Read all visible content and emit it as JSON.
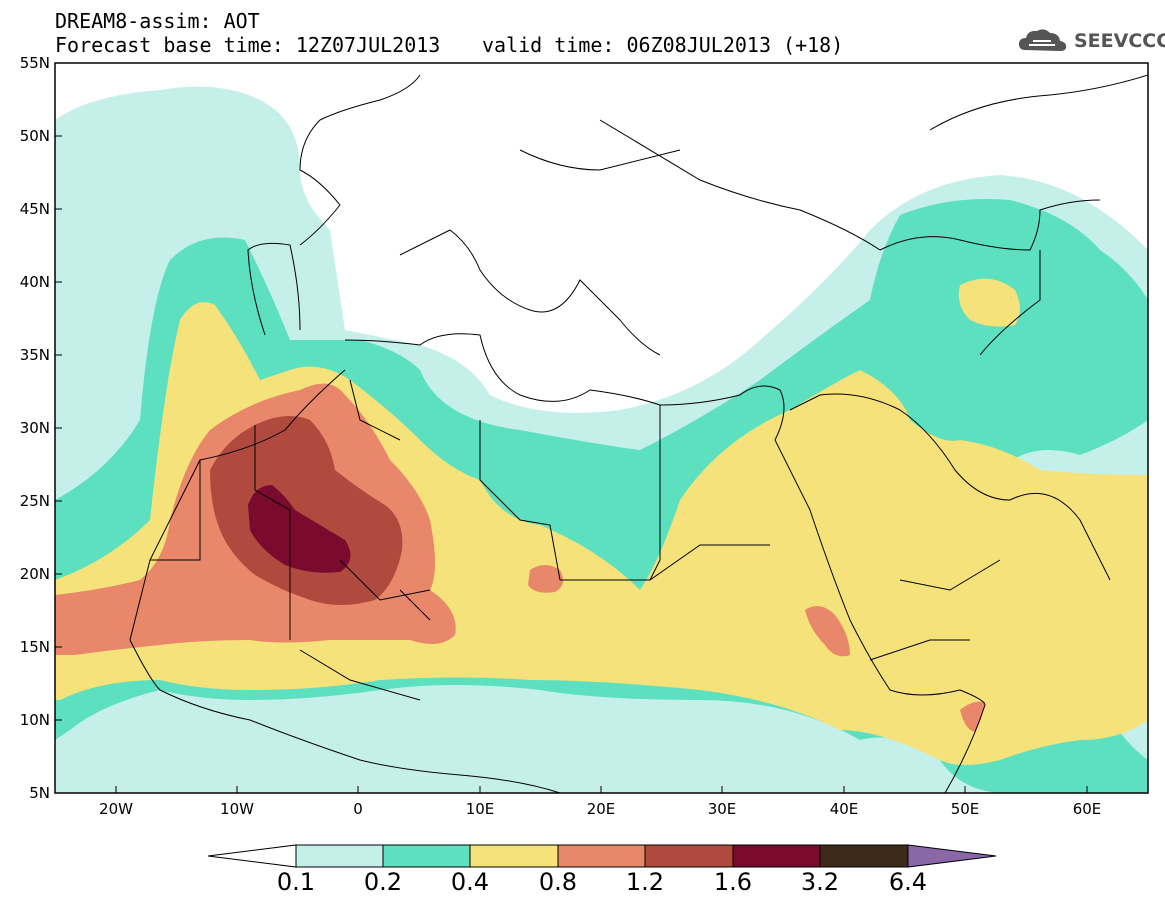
{
  "header": {
    "line1": "DREAM8-assim: AOT",
    "line2": "Forecast base time: 12Z07JUL2013",
    "valid": "valid time: 06Z08JUL2013 (+18)",
    "logo": "SEEVCCC"
  },
  "map": {
    "lat_labels": [
      "55N",
      "50N",
      "45N",
      "40N",
      "35N",
      "30N",
      "25N",
      "20N",
      "15N",
      "10N",
      "5N"
    ],
    "lon_labels": [
      "20W",
      "10W",
      "0",
      "10E",
      "20E",
      "30E",
      "40E",
      "50E",
      "60E"
    ]
  },
  "colorbar": {
    "labels": [
      "0.1",
      "0.2",
      "0.4",
      "0.8",
      "1.2",
      "1.6",
      "3.2",
      "6.4"
    ],
    "colors": [
      "#c5f0ea",
      "#5de0bf",
      "#f5e27a",
      "#e8876a",
      "#b04a3e",
      "#7a0a2e",
      "#3e2a1a",
      "#8a68a8"
    ]
  }
}
